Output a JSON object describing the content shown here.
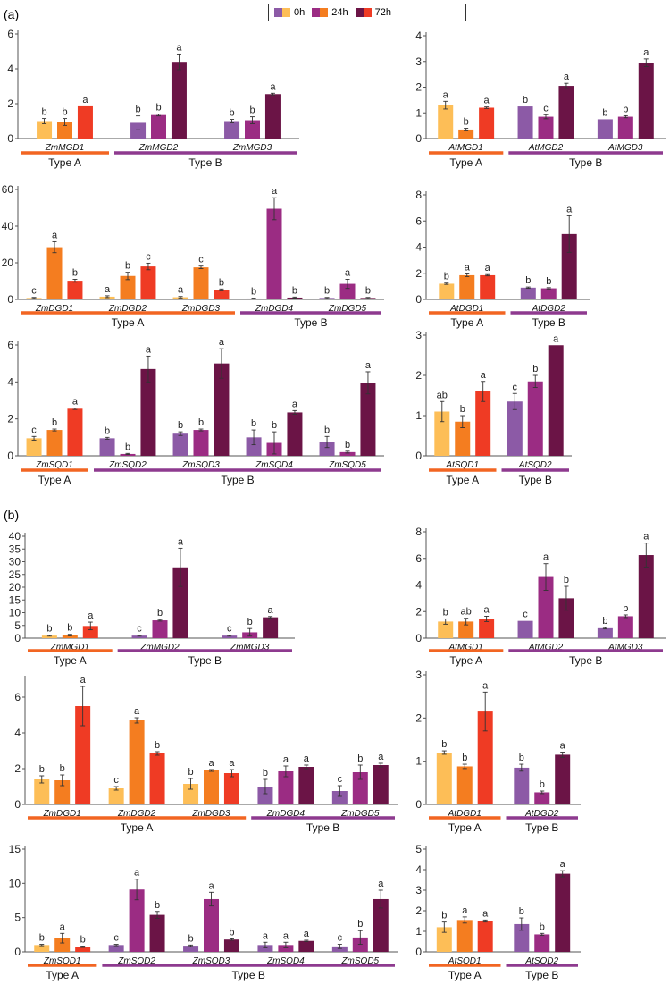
{
  "panels": [
    {
      "label": "(a)"
    },
    {
      "label": "(b)"
    }
  ],
  "legend": {
    "entries": [
      "0h",
      "24h",
      "72h"
    ],
    "colors": {
      "typeA": [
        "#FDBE57",
        "#F47D20",
        "#EF3B24"
      ],
      "typeB": [
        "#8C5AA6",
        "#9B2C83",
        "#6B1446"
      ]
    }
  },
  "chart_data": [
    {
      "type": "bar",
      "panel": "a",
      "ylim": [
        0,
        6
      ],
      "yticks": [
        0,
        2,
        4,
        6
      ],
      "genes": [
        {
          "name": "ZmMGD1",
          "group": "A",
          "values": [
            1.0,
            0.95,
            1.85
          ],
          "errors": [
            0.15,
            0.2,
            0.0
          ],
          "letters": [
            "b",
            "b",
            "a"
          ]
        },
        {
          "name": "ZmMGD2",
          "group": "B",
          "values": [
            0.9,
            1.35,
            4.4
          ],
          "errors": [
            0.4,
            0.05,
            0.45
          ],
          "letters": [
            "b",
            "b",
            "a"
          ]
        },
        {
          "name": "ZmMGD3",
          "group": "B",
          "values": [
            1.0,
            1.05,
            2.55
          ],
          "errors": [
            0.1,
            0.2,
            0.05
          ],
          "letters": [
            "b",
            "b",
            "a"
          ]
        }
      ],
      "groups": [
        {
          "label": "Type A",
          "type": "A"
        },
        {
          "label": "Type B",
          "type": "B"
        }
      ]
    },
    {
      "type": "bar",
      "panel": "a",
      "ylim": [
        0,
        4
      ],
      "yticks": [
        0,
        1,
        2,
        3,
        4
      ],
      "genes": [
        {
          "name": "AtMGD1",
          "group": "A",
          "values": [
            1.3,
            0.35,
            1.2
          ],
          "errors": [
            0.15,
            0.05,
            0.03
          ],
          "letters": [
            "a",
            "b",
            "a"
          ]
        },
        {
          "name": "AtMGD2",
          "group": "B",
          "values": [
            1.25,
            0.85,
            2.05
          ],
          "errors": [
            0.0,
            0.08,
            0.1
          ],
          "letters": [
            "b",
            "c",
            "a"
          ]
        },
        {
          "name": "AtMGD3",
          "group": "B",
          "values": [
            0.75,
            0.85,
            2.95
          ],
          "errors": [
            0.0,
            0.04,
            0.15
          ],
          "letters": [
            "b",
            "b",
            "a"
          ]
        }
      ],
      "groups": [
        {
          "label": "Type A",
          "type": "A"
        },
        {
          "label": "Type B",
          "type": "B"
        }
      ]
    },
    {
      "type": "bar",
      "panel": "a",
      "ylim": [
        0,
        60
      ],
      "yticks": [
        0,
        20,
        40,
        60
      ],
      "genes": [
        {
          "name": "ZmDGD1",
          "group": "A",
          "values": [
            0.8,
            28.5,
            10.2
          ],
          "errors": [
            0.3,
            3.0,
            0.8
          ],
          "letters": [
            "c",
            "a",
            "b"
          ]
        },
        {
          "name": "ZmDGD2",
          "group": "A",
          "values": [
            1.5,
            12.8,
            18.0
          ],
          "errors": [
            0.5,
            2.0,
            1.8
          ],
          "letters": [
            "a",
            "b",
            "c"
          ]
        },
        {
          "name": "ZmDGD3",
          "group": "A",
          "values": [
            1.2,
            17.5,
            5.2
          ],
          "errors": [
            0.4,
            0.7,
            0.5
          ],
          "letters": [
            "a",
            "c",
            "b"
          ]
        },
        {
          "name": "ZmDGD4",
          "group": "B",
          "values": [
            0.5,
            49.5,
            1.0
          ],
          "errors": [
            0.2,
            6.0,
            0.3
          ],
          "letters": [
            "b",
            "a",
            "b"
          ]
        },
        {
          "name": "ZmDGD5",
          "group": "B",
          "values": [
            0.8,
            8.5,
            0.8
          ],
          "errors": [
            0.3,
            2.5,
            0.3
          ],
          "letters": [
            "b",
            "a",
            "b"
          ]
        }
      ],
      "groups": [
        {
          "label": "Type A",
          "type": "A"
        },
        {
          "label": "Type B",
          "type": "B"
        }
      ]
    },
    {
      "type": "bar",
      "panel": "a",
      "ylim": [
        0,
        8
      ],
      "yticks": [
        0,
        2,
        4,
        6,
        8
      ],
      "genes": [
        {
          "name": "AtDGD1",
          "group": "A",
          "values": [
            1.2,
            1.85,
            1.85
          ],
          "errors": [
            0.05,
            0.1,
            0.05
          ],
          "letters": [
            "b",
            "a",
            "a"
          ]
        },
        {
          "name": "AtDGD2",
          "group": "B",
          "values": [
            0.9,
            0.85,
            5.0
          ],
          "errors": [
            0.05,
            0.05,
            1.4
          ],
          "letters": [
            "b",
            "b",
            "a"
          ]
        }
      ],
      "groups": [
        {
          "label": "Type A",
          "type": "A"
        },
        {
          "label": "Type B",
          "type": "B"
        }
      ]
    },
    {
      "type": "bar",
      "panel": "a",
      "ylim": [
        0,
        6
      ],
      "yticks": [
        0,
        2,
        4,
        6
      ],
      "genes": [
        {
          "name": "ZmSQD1",
          "group": "A",
          "values": [
            0.95,
            1.4,
            2.55
          ],
          "errors": [
            0.1,
            0.05,
            0.04
          ],
          "letters": [
            "c",
            "b",
            "a"
          ]
        },
        {
          "name": "ZmSQD2",
          "group": "B",
          "values": [
            0.95,
            0.1,
            4.7
          ],
          "errors": [
            0.05,
            0.03,
            0.7
          ],
          "letters": [
            "b",
            "b",
            "a"
          ]
        },
        {
          "name": "ZmSQD3",
          "group": "B",
          "values": [
            1.2,
            1.4,
            5.0
          ],
          "errors": [
            0.1,
            0.05,
            0.8
          ],
          "letters": [
            "b",
            "b",
            "a"
          ]
        },
        {
          "name": "ZmSQD4",
          "group": "B",
          "values": [
            1.0,
            0.7,
            2.35
          ],
          "errors": [
            0.4,
            0.6,
            0.1
          ],
          "letters": [
            "b",
            "b",
            "a"
          ]
        },
        {
          "name": "ZmSQD5",
          "group": "B",
          "values": [
            0.75,
            0.2,
            3.95
          ],
          "errors": [
            0.3,
            0.05,
            0.6
          ],
          "letters": [
            "b",
            "b",
            "a"
          ]
        }
      ],
      "groups": [
        {
          "label": "Type A",
          "type": "A"
        },
        {
          "label": "Type B",
          "type": "B"
        }
      ]
    },
    {
      "type": "bar",
      "panel": "a",
      "ylim": [
        0,
        3
      ],
      "yticks": [
        0,
        1,
        2,
        3
      ],
      "genes": [
        {
          "name": "AtSQD1",
          "group": "A",
          "values": [
            1.1,
            0.85,
            1.6
          ],
          "errors": [
            0.25,
            0.15,
            0.25
          ],
          "letters": [
            "ab",
            "b",
            "a"
          ]
        },
        {
          "name": "AtSQD2",
          "group": "B",
          "values": [
            1.35,
            1.85,
            2.75
          ],
          "errors": [
            0.2,
            0.15,
            0.0
          ],
          "letters": [
            "c",
            "b",
            "a"
          ]
        }
      ],
      "groups": [
        {
          "label": "Type A",
          "type": "A"
        },
        {
          "label": "Type B",
          "type": "B"
        }
      ]
    },
    {
      "type": "bar",
      "panel": "b",
      "ylim": [
        0,
        40
      ],
      "yticks": [
        0,
        5,
        10,
        15,
        20,
        25,
        30,
        35,
        40
      ],
      "genes": [
        {
          "name": "ZmMGD1",
          "group": "A",
          "values": [
            1.0,
            1.2,
            4.8
          ],
          "errors": [
            0.2,
            0.3,
            1.5
          ],
          "letters": [
            "b",
            "b",
            "a"
          ]
        },
        {
          "name": "ZmMGD2",
          "group": "B",
          "values": [
            1.0,
            7.0,
            27.8
          ],
          "errors": [
            0.2,
            0.3,
            7.5
          ],
          "letters": [
            "c",
            "b",
            "a"
          ]
        },
        {
          "name": "ZmMGD3",
          "group": "B",
          "values": [
            1.0,
            2.3,
            8.2
          ],
          "errors": [
            0.2,
            1.5,
            0.3
          ],
          "letters": [
            "c",
            "b",
            "a"
          ]
        }
      ],
      "groups": [
        {
          "label": "Type A",
          "type": "A"
        },
        {
          "label": "Type B",
          "type": "B"
        }
      ]
    },
    {
      "type": "bar",
      "panel": "b",
      "ylim": [
        0,
        8
      ],
      "yticks": [
        0,
        2,
        4,
        6,
        8
      ],
      "genes": [
        {
          "name": "AtMGD1",
          "group": "A",
          "values": [
            1.25,
            1.25,
            1.45
          ],
          "errors": [
            0.2,
            0.25,
            0.2
          ],
          "letters": [
            "b",
            "ab",
            "a"
          ]
        },
        {
          "name": "AtMGD2",
          "group": "B",
          "values": [
            1.3,
            4.6,
            3.0
          ],
          "errors": [
            0.0,
            1.0,
            0.9
          ],
          "letters": [
            "c",
            "a",
            "b"
          ]
        },
        {
          "name": "AtMGD3",
          "group": "B",
          "values": [
            0.75,
            1.65,
            6.25
          ],
          "errors": [
            0.05,
            0.1,
            0.9
          ],
          "letters": [
            "b",
            "b",
            "a"
          ]
        }
      ],
      "groups": [
        {
          "label": "Type A",
          "type": "A"
        },
        {
          "label": "Type B",
          "type": "B"
        }
      ]
    },
    {
      "type": "bar",
      "panel": "b",
      "ylim": [
        0,
        7
      ],
      "yticks": [
        0,
        2,
        4,
        6
      ],
      "genes": [
        {
          "name": "ZmDGD1",
          "group": "A",
          "values": [
            1.4,
            1.35,
            5.5
          ],
          "errors": [
            0.2,
            0.3,
            1.1
          ],
          "letters": [
            "b",
            "b",
            "a"
          ]
        },
        {
          "name": "ZmDGD2",
          "group": "A",
          "values": [
            0.9,
            4.7,
            2.85
          ],
          "errors": [
            0.1,
            0.15,
            0.1
          ],
          "letters": [
            "c",
            "a",
            "b"
          ]
        },
        {
          "name": "ZmDGD3",
          "group": "A",
          "values": [
            1.15,
            1.9,
            1.75
          ],
          "errors": [
            0.3,
            0.05,
            0.2
          ],
          "letters": [
            "b",
            "a",
            "a"
          ]
        },
        {
          "name": "ZmDGD4",
          "group": "B",
          "values": [
            1.0,
            1.85,
            2.1
          ],
          "errors": [
            0.4,
            0.3,
            0.1
          ],
          "letters": [
            "b",
            "a",
            "a"
          ]
        },
        {
          "name": "ZmDGD5",
          "group": "B",
          "values": [
            0.75,
            1.8,
            2.2
          ],
          "errors": [
            0.3,
            0.4,
            0.1
          ],
          "letters": [
            "c",
            "b",
            "a"
          ]
        }
      ],
      "groups": [
        {
          "label": "Type A",
          "type": "A"
        },
        {
          "label": "Type B",
          "type": "B"
        }
      ]
    },
    {
      "type": "bar",
      "panel": "b",
      "ylim": [
        0,
        3
      ],
      "yticks": [
        0,
        1,
        2,
        3
      ],
      "genes": [
        {
          "name": "AtDGD1",
          "group": "A",
          "values": [
            1.2,
            0.88,
            2.15
          ],
          "errors": [
            0.04,
            0.05,
            0.45
          ],
          "letters": [
            "b",
            "b",
            "a"
          ]
        },
        {
          "name": "AtDGD2",
          "group": "B",
          "values": [
            0.85,
            0.28,
            1.15
          ],
          "errors": [
            0.08,
            0.03,
            0.06
          ],
          "letters": [
            "b",
            "b",
            "a"
          ]
        }
      ],
      "groups": [
        {
          "label": "Type A",
          "type": "A"
        },
        {
          "label": "Type B",
          "type": "B"
        }
      ]
    },
    {
      "type": "bar",
      "panel": "b",
      "ylim": [
        0,
        15
      ],
      "yticks": [
        0,
        5,
        10,
        15
      ],
      "genes": [
        {
          "name": "ZmSQD1",
          "group": "A",
          "values": [
            1.0,
            2.0,
            0.75
          ],
          "errors": [
            0.1,
            0.7,
            0.1
          ],
          "letters": [
            "b",
            "a",
            "b"
          ]
        },
        {
          "name": "ZmSQD2",
          "group": "B",
          "values": [
            1.0,
            9.1,
            5.4
          ],
          "errors": [
            0.1,
            1.5,
            0.5
          ],
          "letters": [
            "c",
            "a",
            "b"
          ]
        },
        {
          "name": "ZmSQD3",
          "group": "B",
          "values": [
            0.9,
            7.7,
            1.8
          ],
          "errors": [
            0.1,
            1.0,
            0.1
          ],
          "letters": [
            "b",
            "a",
            "b"
          ]
        },
        {
          "name": "ZmSQD4",
          "group": "B",
          "values": [
            1.0,
            1.0,
            1.6
          ],
          "errors": [
            0.4,
            0.4,
            0.1
          ],
          "letters": [
            "a",
            "a",
            "a"
          ]
        },
        {
          "name": "ZmSQD5",
          "group": "B",
          "values": [
            0.8,
            2.1,
            7.7
          ],
          "errors": [
            0.3,
            1.0,
            1.3
          ],
          "letters": [
            "c",
            "b",
            "a"
          ]
        }
      ],
      "groups": [
        {
          "label": "Type A",
          "type": "A"
        },
        {
          "label": "Type B",
          "type": "B"
        }
      ]
    },
    {
      "type": "bar",
      "panel": "b",
      "ylim": [
        0,
        5
      ],
      "yticks": [
        0,
        1,
        2,
        3,
        4,
        5
      ],
      "genes": [
        {
          "name": "AtSQD1",
          "group": "A",
          "values": [
            1.2,
            1.55,
            1.5
          ],
          "errors": [
            0.25,
            0.15,
            0.05
          ],
          "letters": [
            "b",
            "a",
            "a"
          ]
        },
        {
          "name": "AtSQD2",
          "group": "B",
          "values": [
            1.35,
            0.85,
            3.8
          ],
          "errors": [
            0.3,
            0.05,
            0.15
          ],
          "letters": [
            "b",
            "b",
            "a"
          ]
        }
      ],
      "groups": [
        {
          "label": "Type A",
          "type": "A"
        },
        {
          "label": "Type B",
          "type": "B"
        }
      ]
    }
  ]
}
